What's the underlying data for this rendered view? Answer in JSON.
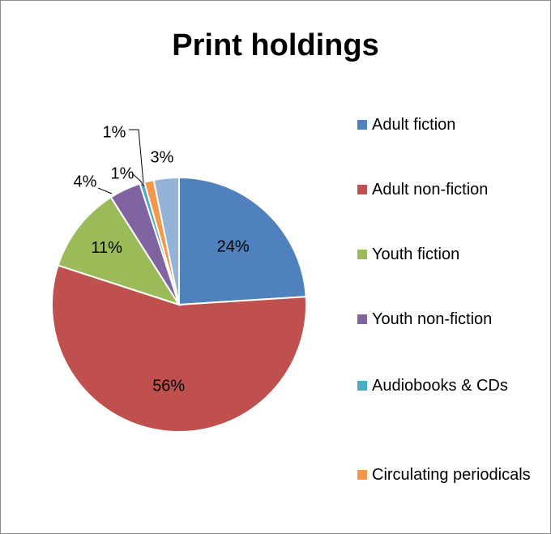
{
  "chart_data": {
    "type": "pie",
    "title": "Print holdings",
    "slices": [
      {
        "label": "Adult fiction",
        "percent_label": "24%",
        "value": 24,
        "color": "#4F81BD"
      },
      {
        "label": "Adult non-fiction",
        "percent_label": "56%",
        "value": 56,
        "color": "#C0504D"
      },
      {
        "label": "Youth fiction",
        "percent_label": "11%",
        "value": 11,
        "color": "#9BBB59"
      },
      {
        "label": "Youth non-fiction",
        "percent_label": "4%",
        "value": 4,
        "color": "#8064A2"
      },
      {
        "label": "Audiobooks & CDs",
        "percent_label": "1%",
        "value": 0.6,
        "color": "#4BACC6"
      },
      {
        "label": "Circulating periodicals",
        "percent_label": "1%",
        "value": 1.2,
        "color": "#F79646"
      },
      {
        "label": "",
        "percent_label": "3%",
        "value": 3.2,
        "color": "#95B3D7"
      }
    ],
    "legend_position": "right",
    "legend_visible_entries": [
      "Adult fiction",
      "Adult non-fiction",
      "Youth fiction",
      "Youth non-fiction",
      "Audiobooks & CDs",
      "Circulating periodicals"
    ],
    "data_labels": "inside-end / outside with leader lines for small slices"
  }
}
